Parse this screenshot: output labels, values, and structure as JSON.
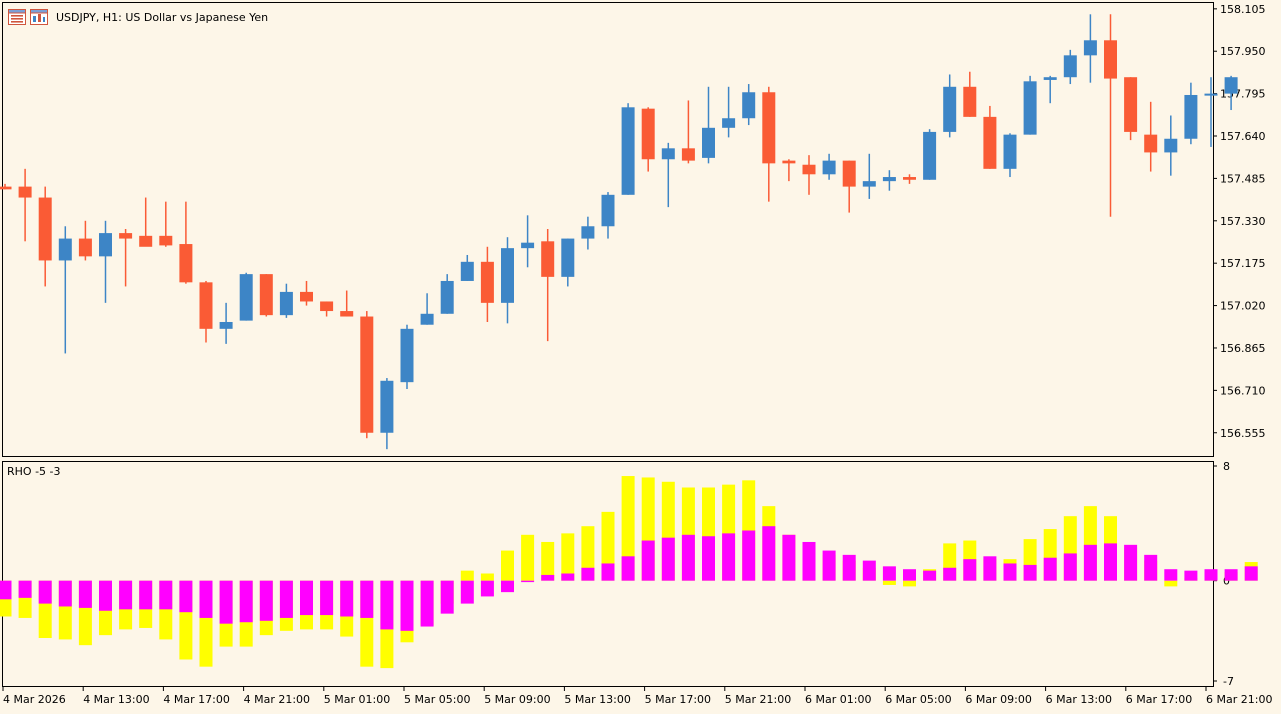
{
  "header": {
    "symbol_title": "USDJPY, H1:  US Dollar vs Japanese Yen",
    "icons": [
      "chart-list-icon",
      "chart-window-icon"
    ]
  },
  "indicator": {
    "label": "RHO -5 -3"
  },
  "colors": {
    "background": "#fdf6e8",
    "bull": "#3d85c6",
    "bear": "#fa5b35",
    "rho_primary": "#ff00ff",
    "rho_secondary": "#ffff00",
    "axis": "#000000"
  },
  "chart_data": [
    {
      "type": "candlestick",
      "symbol": "USDJPY",
      "timeframe": "H1",
      "ylim": [
        156.47,
        158.13
      ],
      "y_ticks": [
        "158.105",
        "157.950",
        "157.795",
        "157.640",
        "157.485",
        "157.330",
        "157.175",
        "157.020",
        "156.865",
        "156.710",
        "156.555"
      ],
      "candles": [
        {
          "o": 157.455,
          "h": 157.465,
          "l": 157.445,
          "c": 157.445
        },
        {
          "o": 157.455,
          "h": 157.52,
          "l": 157.255,
          "c": 157.415
        },
        {
          "o": 157.415,
          "h": 157.455,
          "l": 157.09,
          "c": 157.185
        },
        {
          "o": 157.185,
          "h": 157.31,
          "l": 156.845,
          "c": 157.265
        },
        {
          "o": 157.265,
          "h": 157.33,
          "l": 157.185,
          "c": 157.2
        },
        {
          "o": 157.2,
          "h": 157.33,
          "l": 157.03,
          "c": 157.285
        },
        {
          "o": 157.285,
          "h": 157.3,
          "l": 157.09,
          "c": 157.265
        },
        {
          "o": 157.275,
          "h": 157.415,
          "l": 157.245,
          "c": 157.235
        },
        {
          "o": 157.275,
          "h": 157.4,
          "l": 157.235,
          "c": 157.24
        },
        {
          "o": 157.245,
          "h": 157.4,
          "l": 157.1,
          "c": 157.105
        },
        {
          "o": 157.105,
          "h": 157.11,
          "l": 156.885,
          "c": 156.935
        },
        {
          "o": 156.935,
          "h": 157.03,
          "l": 156.88,
          "c": 156.96
        },
        {
          "o": 156.965,
          "h": 157.14,
          "l": 156.965,
          "c": 157.135
        },
        {
          "o": 157.135,
          "h": 157.135,
          "l": 156.98,
          "c": 156.985
        },
        {
          "o": 156.985,
          "h": 157.1,
          "l": 156.975,
          "c": 157.07
        },
        {
          "o": 157.07,
          "h": 157.11,
          "l": 157.02,
          "c": 157.035
        },
        {
          "o": 157.035,
          "h": 157.035,
          "l": 156.98,
          "c": 157.0
        },
        {
          "o": 157.0,
          "h": 157.075,
          "l": 156.98,
          "c": 156.98
        },
        {
          "o": 156.98,
          "h": 157.0,
          "l": 156.535,
          "c": 156.555
        },
        {
          "o": 156.555,
          "h": 156.755,
          "l": 156.495,
          "c": 156.745
        },
        {
          "o": 156.74,
          "h": 156.95,
          "l": 156.715,
          "c": 156.935
        },
        {
          "o": 156.95,
          "h": 157.065,
          "l": 156.95,
          "c": 156.99
        },
        {
          "o": 156.99,
          "h": 157.135,
          "l": 156.99,
          "c": 157.11
        },
        {
          "o": 157.11,
          "h": 157.205,
          "l": 157.11,
          "c": 157.18
        },
        {
          "o": 157.18,
          "h": 157.235,
          "l": 156.96,
          "c": 157.03
        },
        {
          "o": 157.03,
          "h": 157.27,
          "l": 156.955,
          "c": 157.23
        },
        {
          "o": 157.23,
          "h": 157.35,
          "l": 157.16,
          "c": 157.25
        },
        {
          "o": 157.255,
          "h": 157.3,
          "l": 156.89,
          "c": 157.125
        },
        {
          "o": 157.125,
          "h": 157.265,
          "l": 157.09,
          "c": 157.265
        },
        {
          "o": 157.265,
          "h": 157.345,
          "l": 157.225,
          "c": 157.31
        },
        {
          "o": 157.31,
          "h": 157.435,
          "l": 157.265,
          "c": 157.425
        },
        {
          "o": 157.425,
          "h": 157.76,
          "l": 157.425,
          "c": 157.745
        },
        {
          "o": 157.74,
          "h": 157.745,
          "l": 157.51,
          "c": 157.555
        },
        {
          "o": 157.555,
          "h": 157.615,
          "l": 157.38,
          "c": 157.595
        },
        {
          "o": 157.595,
          "h": 157.77,
          "l": 157.54,
          "c": 157.55
        },
        {
          "o": 157.56,
          "h": 157.82,
          "l": 157.54,
          "c": 157.67
        },
        {
          "o": 157.67,
          "h": 157.82,
          "l": 157.635,
          "c": 157.705
        },
        {
          "o": 157.705,
          "h": 157.83,
          "l": 157.68,
          "c": 157.8
        },
        {
          "o": 157.8,
          "h": 157.82,
          "l": 157.4,
          "c": 157.54
        },
        {
          "o": 157.55,
          "h": 157.555,
          "l": 157.475,
          "c": 157.54
        },
        {
          "o": 157.535,
          "h": 157.57,
          "l": 157.425,
          "c": 157.5
        },
        {
          "o": 157.5,
          "h": 157.575,
          "l": 157.48,
          "c": 157.55
        },
        {
          "o": 157.55,
          "h": 157.55,
          "l": 157.36,
          "c": 157.455
        },
        {
          "o": 157.455,
          "h": 157.575,
          "l": 157.41,
          "c": 157.475
        },
        {
          "o": 157.475,
          "h": 157.515,
          "l": 157.44,
          "c": 157.49
        },
        {
          "o": 157.49,
          "h": 157.5,
          "l": 157.465,
          "c": 157.48
        },
        {
          "o": 157.48,
          "h": 157.665,
          "l": 157.48,
          "c": 157.655
        },
        {
          "o": 157.655,
          "h": 157.865,
          "l": 157.635,
          "c": 157.82
        },
        {
          "o": 157.82,
          "h": 157.875,
          "l": 157.71,
          "c": 157.71
        },
        {
          "o": 157.71,
          "h": 157.75,
          "l": 157.52,
          "c": 157.52
        },
        {
          "o": 157.52,
          "h": 157.65,
          "l": 157.49,
          "c": 157.645
        },
        {
          "o": 157.645,
          "h": 157.86,
          "l": 157.645,
          "c": 157.84
        },
        {
          "o": 157.845,
          "h": 157.86,
          "l": 157.76,
          "c": 157.855
        },
        {
          "o": 157.855,
          "h": 157.955,
          "l": 157.83,
          "c": 157.935
        },
        {
          "o": 157.935,
          "h": 158.085,
          "l": 157.835,
          "c": 157.99
        },
        {
          "o": 157.99,
          "h": 158.085,
          "l": 157.345,
          "c": 157.85
        },
        {
          "o": 157.855,
          "h": 157.855,
          "l": 157.625,
          "c": 157.655
        },
        {
          "o": 157.645,
          "h": 157.765,
          "l": 157.51,
          "c": 157.58
        },
        {
          "o": 157.58,
          "h": 157.715,
          "l": 157.495,
          "c": 157.63
        },
        {
          "o": 157.63,
          "h": 157.835,
          "l": 157.61,
          "c": 157.79
        },
        {
          "o": 157.79,
          "h": 157.855,
          "l": 157.6,
          "c": 157.795
        },
        {
          "o": 157.795,
          "h": 157.86,
          "l": 157.735,
          "c": 157.855
        }
      ]
    },
    {
      "type": "bar",
      "title": "RHO -5 -3",
      "ylim": [
        -7,
        8
      ],
      "y_ticks": [
        "8",
        "0",
        "-7"
      ],
      "x_tick_labels": [
        "4 Mar 2026",
        "4 Mar 13:00",
        "4 Mar 17:00",
        "4 Mar 21:00",
        "5 Mar 01:00",
        "5 Mar 05:00",
        "5 Mar 09:00",
        "5 Mar 13:00",
        "5 Mar 17:00",
        "5 Mar 21:00",
        "6 Mar 01:00",
        "6 Mar 05:00",
        "6 Mar 09:00",
        "6 Mar 13:00",
        "6 Mar 17:00",
        "6 Mar 21:00"
      ],
      "series": [
        {
          "values": [
            -1.3,
            -1.2,
            -1.6,
            -1.8,
            -1.9,
            -2.1,
            -2.0,
            -2.0,
            -2.0,
            -2.2,
            -2.6,
            -3.0,
            -2.9,
            -2.8,
            -2.6,
            -2.4,
            -2.4,
            -2.5,
            -2.6,
            -3.4,
            -3.5,
            -3.2,
            -2.3,
            -1.6,
            -1.1,
            -0.8,
            -0.1,
            0.4,
            0.5,
            0.9,
            1.2,
            1.7,
            2.8,
            3.0,
            3.2,
            3.1,
            3.3,
            3.5,
            3.8,
            3.2,
            2.7,
            2.1,
            1.8,
            1.4,
            1.0,
            0.8,
            0.7,
            0.9,
            1.5,
            1.7,
            1.2,
            1.1,
            1.6,
            1.9,
            2.5,
            2.6,
            2.5,
            1.8,
            0.8,
            0.7,
            0.8,
            0.8,
            1.0
          ]
        },
        {
          "values": [
            -2.5,
            -2.6,
            -4.0,
            -4.1,
            -4.5,
            -3.8,
            -3.4,
            -3.3,
            -4.1,
            -5.5,
            -6.0,
            -4.6,
            -4.6,
            -3.8,
            -3.5,
            -3.4,
            -3.4,
            -3.9,
            -6.0,
            -6.1,
            -4.3,
            -3.1,
            -1.6,
            0.7,
            0.5,
            2.1,
            3.2,
            2.7,
            3.3,
            3.8,
            4.8,
            7.3,
            7.2,
            6.9,
            6.5,
            6.5,
            6.7,
            7.0,
            5.2,
            3.2,
            2.2,
            1.8,
            1.4,
            0.9,
            -0.3,
            -0.4,
            0.8,
            2.6,
            2.8,
            1.5,
            1.5,
            2.9,
            3.6,
            4.5,
            5.2,
            4.5,
            2.3,
            1.4,
            -0.4,
            0.2,
            0.4,
            0.6,
            1.3
          ]
        }
      ]
    }
  ]
}
